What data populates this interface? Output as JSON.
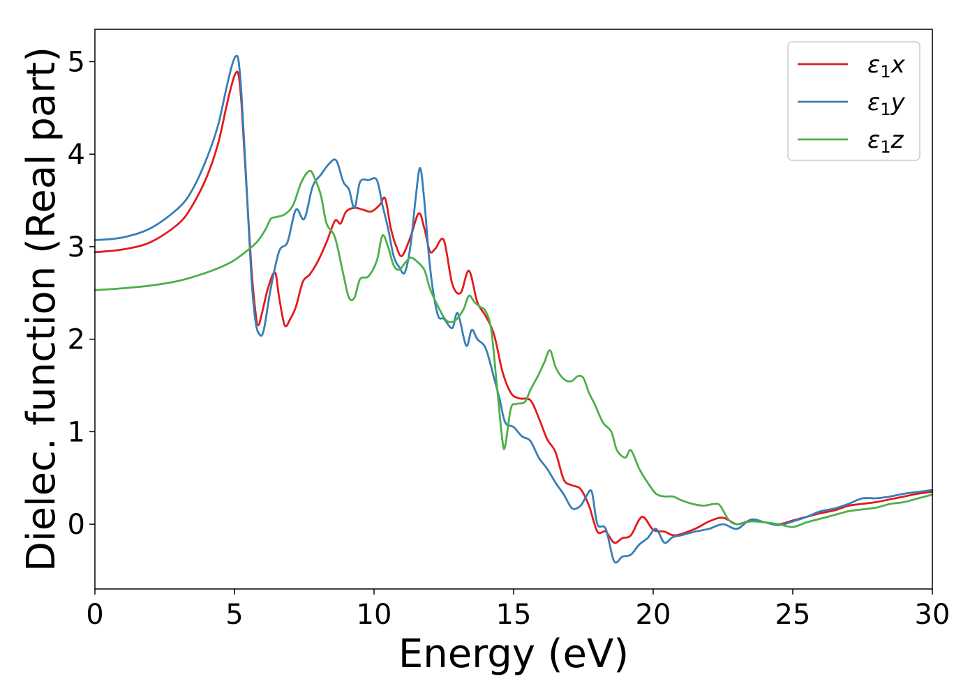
{
  "chart_data": {
    "type": "line",
    "title": "",
    "xlabel": "Energy (eV)",
    "ylabel": "Dielec. function (Real part)",
    "xlim": [
      0,
      30
    ],
    "ylim": [
      -0.7,
      5.35
    ],
    "xticks": [
      0,
      5,
      10,
      15,
      20,
      25,
      30
    ],
    "yticks": [
      0,
      1,
      2,
      3,
      4,
      5
    ],
    "grid": false,
    "legend_position": "top-right",
    "series": [
      {
        "name": "ε₁x",
        "legend_base": "ε",
        "legend_sub": "1",
        "legend_suffix": "x",
        "color": "#e41a1c",
        "x": [
          0,
          1,
          2,
          3,
          3.5,
          4,
          4.4,
          4.7,
          4.9,
          5.05,
          5.15,
          5.25,
          5.4,
          5.6,
          5.75,
          5.85,
          6.0,
          6.2,
          6.45,
          6.6,
          6.8,
          7.0,
          7.2,
          7.45,
          7.7,
          8.0,
          8.3,
          8.6,
          8.8,
          9.0,
          9.3,
          9.6,
          9.9,
          10.2,
          10.4,
          10.6,
          10.8,
          11.0,
          11.3,
          11.6,
          11.8,
          12.0,
          12.2,
          12.5,
          12.8,
          13.1,
          13.4,
          13.7,
          14.0,
          14.3,
          14.6,
          14.9,
          15.2,
          15.6,
          15.9,
          16.2,
          16.5,
          16.8,
          17.1,
          17.4,
          17.7,
          18.0,
          18.3,
          18.6,
          18.9,
          19.2,
          19.6,
          20.0,
          20.4,
          20.8,
          21.5,
          22.0,
          22.5,
          23.0,
          23.5,
          24.0,
          24.5,
          25.0,
          25.5,
          26.0,
          26.5,
          27.0,
          27.5,
          28.0,
          28.5,
          29.0,
          29.5,
          30
        ],
        "values": [
          2.94,
          2.97,
          3.05,
          3.25,
          3.45,
          3.75,
          4.1,
          4.5,
          4.75,
          4.88,
          4.85,
          4.55,
          3.8,
          2.8,
          2.3,
          2.15,
          2.3,
          2.55,
          2.72,
          2.45,
          2.15,
          2.22,
          2.35,
          2.62,
          2.7,
          2.85,
          3.05,
          3.28,
          3.25,
          3.38,
          3.42,
          3.4,
          3.38,
          3.45,
          3.52,
          3.2,
          3.0,
          2.9,
          3.1,
          3.36,
          3.2,
          2.95,
          2.98,
          3.07,
          2.6,
          2.5,
          2.74,
          2.4,
          2.25,
          2.05,
          1.65,
          1.42,
          1.36,
          1.34,
          1.15,
          0.92,
          0.78,
          0.48,
          0.42,
          0.38,
          0.2,
          -0.08,
          -0.08,
          -0.2,
          -0.15,
          -0.12,
          0.08,
          -0.06,
          -0.08,
          -0.12,
          -0.05,
          0.03,
          0.07,
          0.0,
          0.04,
          0.02,
          0.0,
          0.04,
          0.08,
          0.12,
          0.15,
          0.2,
          0.22,
          0.24,
          0.27,
          0.3,
          0.33,
          0.35
        ]
      },
      {
        "name": "ε₁y",
        "legend_base": "ε",
        "legend_sub": "1",
        "legend_suffix": "y",
        "color": "#377eb8",
        "x": [
          0,
          1,
          2,
          3,
          3.5,
          4,
          4.4,
          4.7,
          4.9,
          5.05,
          5.15,
          5.25,
          5.4,
          5.6,
          5.75,
          5.9,
          6.05,
          6.3,
          6.6,
          6.9,
          7.2,
          7.5,
          7.8,
          8.1,
          8.4,
          8.65,
          8.9,
          9.1,
          9.3,
          9.5,
          9.8,
          10.1,
          10.3,
          10.5,
          10.7,
          10.9,
          11.1,
          11.3,
          11.5,
          11.65,
          11.8,
          11.95,
          12.1,
          12.3,
          12.5,
          12.8,
          13.0,
          13.3,
          13.5,
          13.7,
          14.0,
          14.3,
          14.5,
          14.7,
          15.0,
          15.3,
          15.6,
          15.9,
          16.2,
          16.5,
          16.8,
          17.1,
          17.4,
          17.6,
          17.8,
          18.0,
          18.3,
          18.6,
          18.9,
          19.2,
          19.5,
          19.8,
          20.1,
          20.4,
          20.7,
          21.0,
          21.5,
          22.0,
          22.5,
          23.0,
          23.5,
          24.0,
          24.5,
          25.0,
          25.5,
          26.0,
          26.5,
          27.0,
          27.5,
          28.0,
          28.5,
          29.0,
          29.5,
          30
        ],
        "values": [
          3.07,
          3.1,
          3.2,
          3.42,
          3.62,
          3.95,
          4.3,
          4.7,
          4.95,
          5.06,
          5.0,
          4.65,
          3.85,
          2.7,
          2.2,
          2.05,
          2.1,
          2.55,
          2.95,
          3.05,
          3.4,
          3.3,
          3.65,
          3.78,
          3.9,
          3.93,
          3.7,
          3.62,
          3.42,
          3.7,
          3.72,
          3.72,
          3.45,
          3.2,
          2.9,
          2.78,
          2.72,
          3.0,
          3.55,
          3.85,
          3.5,
          2.95,
          2.55,
          2.25,
          2.22,
          2.12,
          2.28,
          1.93,
          2.1,
          2.0,
          1.9,
          1.58,
          1.35,
          1.1,
          1.05,
          0.95,
          0.9,
          0.72,
          0.6,
          0.45,
          0.32,
          0.17,
          0.2,
          0.3,
          0.35,
          0.0,
          -0.05,
          -0.4,
          -0.35,
          -0.33,
          -0.22,
          -0.15,
          -0.05,
          -0.2,
          -0.14,
          -0.12,
          -0.08,
          -0.05,
          0.0,
          -0.05,
          0.05,
          0.02,
          -0.01,
          0.03,
          0.08,
          0.14,
          0.17,
          0.22,
          0.28,
          0.28,
          0.3,
          0.33,
          0.35,
          0.37
        ]
      },
      {
        "name": "ε₁z",
        "legend_base": "ε",
        "legend_sub": "1",
        "legend_suffix": "z",
        "color": "#4daf4a",
        "x": [
          0,
          1,
          2,
          3,
          4,
          4.8,
          5.3,
          5.8,
          6.1,
          6.3,
          6.5,
          6.8,
          7.1,
          7.4,
          7.7,
          7.9,
          8.1,
          8.3,
          8.6,
          8.9,
          9.1,
          9.3,
          9.5,
          9.8,
          10.1,
          10.3,
          10.5,
          10.7,
          10.9,
          11.1,
          11.3,
          11.5,
          11.8,
          12.0,
          12.3,
          12.6,
          12.9,
          13.2,
          13.4,
          13.6,
          13.8,
          14.0,
          14.2,
          14.4,
          14.6,
          14.7,
          14.9,
          15.1,
          15.4,
          15.6,
          15.9,
          16.1,
          16.3,
          16.5,
          16.7,
          16.9,
          17.1,
          17.3,
          17.5,
          17.7,
          17.9,
          18.2,
          18.5,
          18.7,
          19.0,
          19.2,
          19.5,
          19.8,
          20.1,
          20.4,
          20.7,
          21.0,
          21.4,
          21.8,
          22.2,
          22.4,
          22.7,
          23.0,
          23.5,
          24.0,
          24.5,
          25.0,
          25.5,
          26.0,
          26.5,
          27.0,
          27.5,
          28.0,
          28.5,
          29.0,
          29.5,
          30
        ],
        "values": [
          2.53,
          2.55,
          2.58,
          2.63,
          2.72,
          2.82,
          2.92,
          3.05,
          3.18,
          3.3,
          3.32,
          3.35,
          3.45,
          3.7,
          3.82,
          3.72,
          3.55,
          3.25,
          3.1,
          2.7,
          2.45,
          2.45,
          2.65,
          2.68,
          2.85,
          3.12,
          3.0,
          2.8,
          2.75,
          2.82,
          2.88,
          2.85,
          2.75,
          2.55,
          2.35,
          2.2,
          2.2,
          2.32,
          2.47,
          2.4,
          2.35,
          2.3,
          2.1,
          1.5,
          0.9,
          0.85,
          1.25,
          1.3,
          1.32,
          1.45,
          1.62,
          1.75,
          1.88,
          1.7,
          1.6,
          1.55,
          1.55,
          1.6,
          1.58,
          1.42,
          1.3,
          1.1,
          1.0,
          0.8,
          0.72,
          0.8,
          0.6,
          0.45,
          0.33,
          0.3,
          0.3,
          0.26,
          0.22,
          0.2,
          0.22,
          0.2,
          0.05,
          0.0,
          0.03,
          0.02,
          0.0,
          -0.03,
          0.02,
          0.06,
          0.1,
          0.14,
          0.16,
          0.18,
          0.22,
          0.24,
          0.28,
          0.32
        ]
      }
    ]
  }
}
